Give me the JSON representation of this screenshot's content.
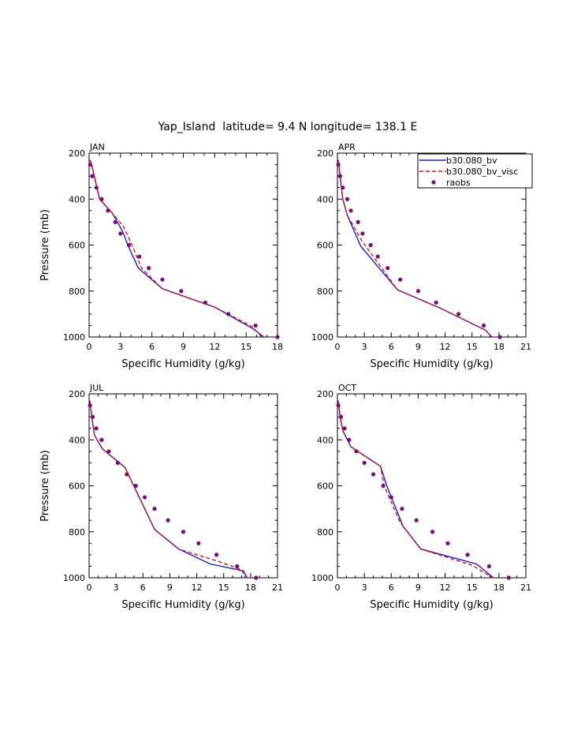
{
  "figure": {
    "title": "Yap_Island  latitude= 9.4 N longitude= 138.1 E"
  },
  "legend": {
    "placement": "top-right of APR panel",
    "entries": [
      {
        "label": "b30.080_bv",
        "style": "solid",
        "color": "#1a1adc"
      },
      {
        "label": "b30.080_bv_visc",
        "style": "dashed",
        "color": "#e01010"
      },
      {
        "label": "raobs",
        "style": "dots",
        "color": "#7b0a7b"
      }
    ]
  },
  "chart_data": [
    {
      "type": "line",
      "panel": "JAN",
      "title": "JAN",
      "xlabel": "Specific Humidity (g/kg)",
      "ylabel": "Pressure (mb)",
      "xlim": [
        0,
        18
      ],
      "ylim": [
        1000,
        200
      ],
      "xticks": [
        "0",
        "3",
        "6",
        "9",
        "12",
        "15",
        "18"
      ],
      "yticks": [
        "200",
        "400",
        "600",
        "800",
        "1000"
      ],
      "series": [
        {
          "name": "b30.080_bv",
          "style": "solid",
          "color": "#1a1adc",
          "x": [
            0.1,
            0.25,
            0.5,
            1.0,
            2.2,
            3.2,
            3.7,
            4.7,
            7.0,
            12.0,
            15.7,
            16.7
          ],
          "y": [
            230,
            250,
            300,
            400,
            460,
            540,
            600,
            700,
            790,
            870,
            965,
            1000
          ]
        },
        {
          "name": "b30.080_bv_visc",
          "style": "dashed",
          "color": "#e01010",
          "x": [
            0.1,
            0.25,
            0.5,
            1.0,
            2.2,
            3.3,
            4.1,
            5.0,
            7.0,
            12.0,
            15.6,
            16.5
          ],
          "y": [
            230,
            250,
            300,
            400,
            460,
            520,
            600,
            700,
            790,
            870,
            955,
            1000
          ]
        },
        {
          "name": "raobs",
          "style": "dots",
          "color": "#7b0a7b",
          "x": [
            0.1,
            0.3,
            0.7,
            1.2,
            1.8,
            2.5,
            3.0,
            3.8,
            4.8,
            5.7,
            7.0,
            8.8,
            11.1,
            13.3,
            15.9,
            18.0
          ],
          "y": [
            250,
            300,
            350,
            400,
            450,
            500,
            550,
            600,
            650,
            700,
            750,
            800,
            850,
            900,
            950,
            1000
          ]
        }
      ]
    },
    {
      "type": "line",
      "panel": "APR",
      "title": "APR",
      "xlabel": "Specific Humidity (g/kg)",
      "ylabel": "",
      "xlim": [
        0,
        21
      ],
      "ylim": [
        1000,
        200
      ],
      "xticks": [
        "0",
        "3",
        "6",
        "9",
        "12",
        "15",
        "18",
        "21"
      ],
      "yticks": [
        "200",
        "400",
        "600",
        "800",
        "1000"
      ],
      "series": [
        {
          "name": "b30.080_bv",
          "style": "solid",
          "color": "#1a1adc",
          "x": [
            0.1,
            0.3,
            0.6,
            1.1,
            2.6,
            6.7,
            11.5,
            16.5,
            17.2
          ],
          "y": [
            230,
            300,
            400,
            470,
            605,
            795,
            875,
            970,
            1000
          ]
        },
        {
          "name": "b30.080_bv_visc",
          "style": "dashed",
          "color": "#e01010",
          "x": [
            0.1,
            0.3,
            0.6,
            1.1,
            2.7,
            6.7,
            11.5,
            16.5,
            17.2
          ],
          "y": [
            230,
            300,
            400,
            470,
            580,
            795,
            875,
            970,
            1000
          ]
        },
        {
          "name": "raobs",
          "style": "dots",
          "color": "#7b0a7b",
          "x": [
            0.1,
            0.3,
            0.6,
            1.1,
            1.5,
            2.3,
            2.8,
            3.7,
            4.5,
            5.6,
            7.0,
            9.0,
            11.0,
            13.5,
            16.3,
            18.1
          ],
          "y": [
            250,
            300,
            350,
            400,
            450,
            500,
            550,
            600,
            650,
            700,
            750,
            800,
            850,
            900,
            950,
            1000
          ]
        }
      ]
    },
    {
      "type": "line",
      "panel": "JUL",
      "title": "JUL",
      "xlabel": "Specific Humidity (g/kg)",
      "ylabel": "Pressure (mb)",
      "xlim": [
        0,
        21
      ],
      "ylim": [
        1000,
        200
      ],
      "xticks": [
        "0",
        "3",
        "6",
        "9",
        "12",
        "15",
        "18",
        "21"
      ],
      "yticks": [
        "200",
        "400",
        "600",
        "800",
        "1000"
      ],
      "series": [
        {
          "name": "b30.080_bv",
          "style": "solid",
          "color": "#1a1adc",
          "x": [
            0.1,
            0.3,
            0.6,
            1.5,
            4.0,
            7.3,
            10.0,
            13.5,
            17.2,
            17.6
          ],
          "y": [
            230,
            300,
            380,
            440,
            520,
            790,
            875,
            940,
            970,
            1000
          ]
        },
        {
          "name": "b30.080_bv_visc",
          "style": "dashed",
          "color": "#e01010",
          "x": [
            0.1,
            0.3,
            0.6,
            1.5,
            4.0,
            7.3,
            10.0,
            14.5,
            17.0,
            17.4
          ],
          "y": [
            230,
            300,
            380,
            440,
            520,
            790,
            875,
            930,
            965,
            1000
          ]
        },
        {
          "name": "raobs",
          "style": "dots",
          "color": "#7b0a7b",
          "x": [
            0.1,
            0.4,
            0.8,
            1.4,
            2.2,
            3.2,
            4.2,
            5.2,
            6.2,
            7.3,
            8.8,
            10.5,
            12.2,
            14.2,
            16.5,
            18.6
          ],
          "y": [
            250,
            300,
            350,
            400,
            450,
            500,
            550,
            600,
            650,
            700,
            750,
            800,
            850,
            900,
            950,
            1000
          ]
        }
      ]
    },
    {
      "type": "line",
      "panel": "OCT",
      "title": "OCT",
      "xlabel": "Specific Humidity (g/kg)",
      "ylabel": "",
      "xlim": [
        0,
        21
      ],
      "ylim": [
        1000,
        200
      ],
      "xticks": [
        "0",
        "3",
        "6",
        "9",
        "12",
        "15",
        "18",
        "21"
      ],
      "yticks": [
        "200",
        "400",
        "600",
        "800",
        "1000"
      ],
      "series": [
        {
          "name": "b30.080_bv",
          "style": "solid",
          "color": "#1a1adc",
          "x": [
            0.1,
            0.3,
            0.6,
            1.5,
            4.8,
            5.5,
            7.3,
            9.3,
            15.5,
            17.4
          ],
          "y": [
            230,
            300,
            360,
            430,
            515,
            600,
            775,
            875,
            940,
            1000
          ]
        },
        {
          "name": "b30.080_bv_visc",
          "style": "dashed",
          "color": "#e01010",
          "x": [
            0.1,
            0.3,
            0.6,
            1.5,
            4.8,
            5.2,
            7.0,
            9.3,
            15.0,
            17.3
          ],
          "y": [
            230,
            300,
            360,
            430,
            515,
            600,
            760,
            875,
            945,
            1000
          ]
        },
        {
          "name": "raobs",
          "style": "dots",
          "color": "#7b0a7b",
          "x": [
            0.1,
            0.4,
            0.8,
            1.3,
            2.1,
            3.0,
            4.0,
            5.1,
            6.0,
            7.2,
            8.8,
            10.6,
            12.3,
            14.5,
            16.9,
            19.1
          ],
          "y": [
            250,
            300,
            350,
            400,
            450,
            500,
            550,
            600,
            650,
            700,
            750,
            800,
            850,
            900,
            950,
            1000
          ]
        }
      ]
    }
  ]
}
